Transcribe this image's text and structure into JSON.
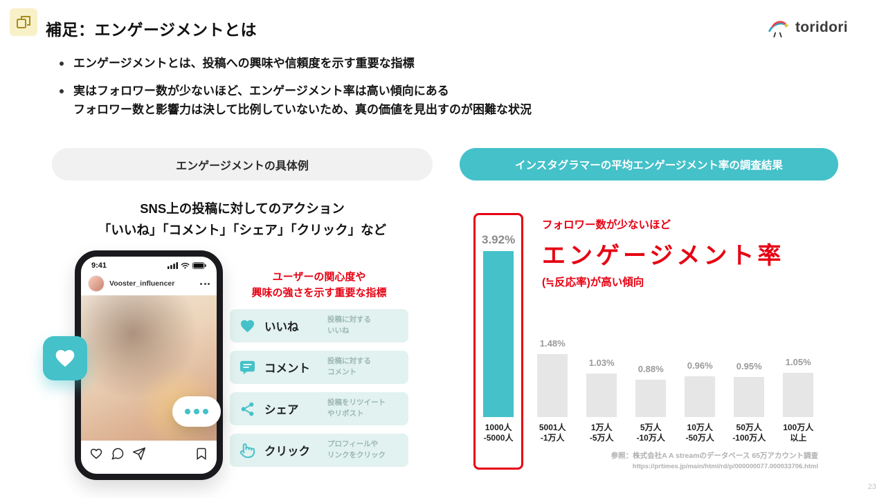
{
  "slide": {
    "title": "補足：エンゲージメントとは",
    "page_number": "23"
  },
  "logo": {
    "text": "toridori"
  },
  "bullets": {
    "b1": "エンゲージメントとは、投稿への興味や信頼度を示す重要な指標",
    "b2_line1": "実はフォロワー数が少ないほど、エンゲージメント率は高い傾向にある",
    "b2_line2": "フォロワー数と影響力は決して比例していないため、真の価値を見出すのが困難な状況"
  },
  "left_panel": {
    "header": "エンゲージメントの具体例",
    "subtitle_line1": "SNS上の投稿に対してのアクション",
    "subtitle_line2": "「いいね」「コメント」「シェア」「クリック」など",
    "phone": {
      "time": "9:41",
      "username": "Vooster_influencer"
    },
    "note_line1": "ユーザーの関心度や",
    "note_line2": "興味の強さを示す重要な指標",
    "actions": [
      {
        "icon": "heart-icon",
        "label": "いいね",
        "desc": [
          "投稿に対する",
          "いいね"
        ]
      },
      {
        "icon": "comment-icon",
        "label": "コメント",
        "desc": [
          "投稿に対する",
          "コメント"
        ]
      },
      {
        "icon": "share-icon",
        "label": "シェア",
        "desc": [
          "投稿をリツイート",
          "やリポスト"
        ]
      },
      {
        "icon": "click-icon",
        "label": "クリック",
        "desc": [
          "プロフィールや",
          "リンクをクリック"
        ]
      }
    ]
  },
  "right_panel": {
    "header": "インスタグラマーの平均エンゲージメント率の調査結果",
    "annotation": {
      "line1": "フォロワー数が少ないほど",
      "line2": "エンゲージメント率",
      "line3": "(≒反応率)が高い傾向"
    },
    "source_line1": "参照：株式会社A A streamのデータベース 65万アカウント調査",
    "source_line2": "https://prtimes.jp/main/html/rd/p/000000077.000033706.html"
  },
  "chart_data": {
    "type": "bar",
    "title": "インスタグラマーの平均エンゲージメント率の調査結果",
    "categories": [
      "1000人-5000人",
      "5001人-1万人",
      "1万人-5万人",
      "5万人-10万人",
      "10万人-50万人",
      "50万人-100万人",
      "100万人以上"
    ],
    "category_lines": [
      [
        "1000人",
        "-5000人"
      ],
      [
        "5001人",
        "-1万人"
      ],
      [
        "1万人",
        "-5万人"
      ],
      [
        "5万人",
        "-10万人"
      ],
      [
        "10万人",
        "-50万人"
      ],
      [
        "50万人",
        "-100万人"
      ],
      [
        "100万人",
        "以上"
      ]
    ],
    "values": [
      3.92,
      1.48,
      1.03,
      0.88,
      0.96,
      0.95,
      1.05
    ],
    "value_labels": [
      "3.92%",
      "1.48%",
      "1.03%",
      "0.88%",
      "0.96%",
      "0.95%",
      "1.05%"
    ],
    "unit": "%",
    "ylim": [
      0,
      4
    ],
    "highlight_index": 0,
    "legend": "none",
    "grid": "off",
    "bar_colors": {
      "highlight": "#44c1c9",
      "default": "#e6e6e6"
    }
  },
  "colors": {
    "teal": "#44c1c9",
    "teal_light": "#e1f2f0",
    "red": "#e60012",
    "pill_gray": "#f1f1f2"
  }
}
